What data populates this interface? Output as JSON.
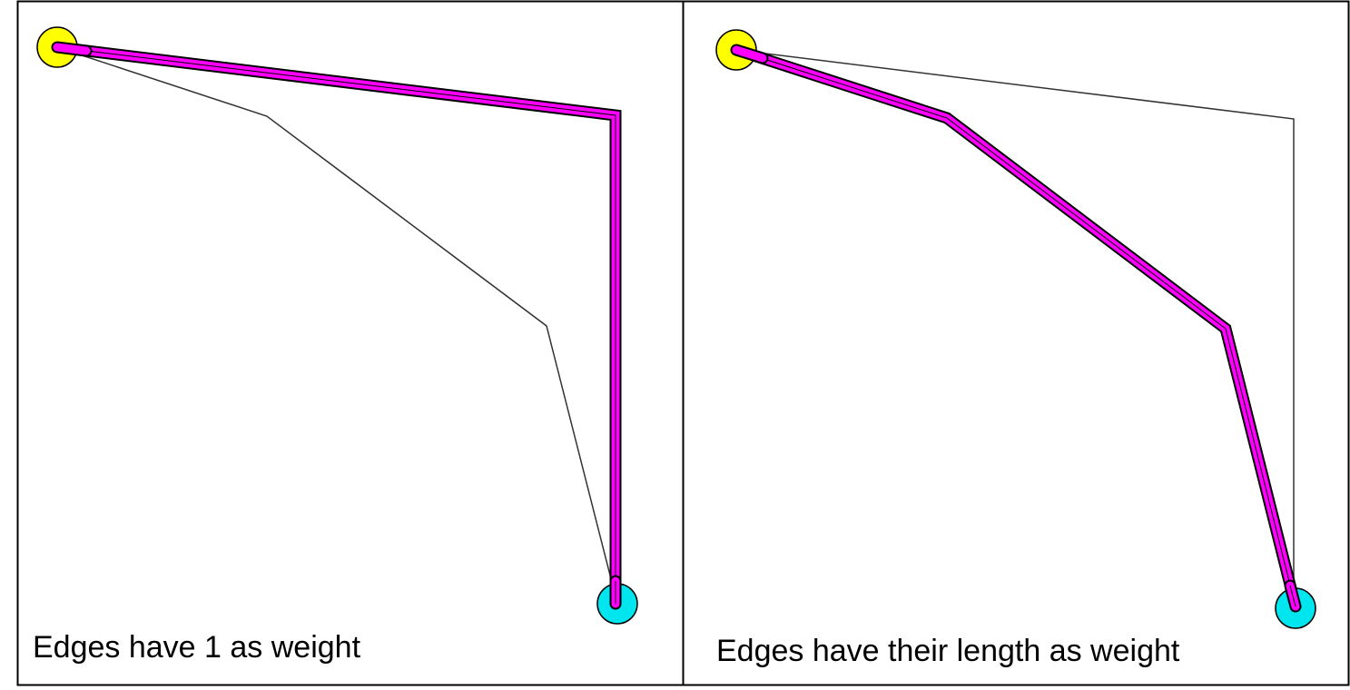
{
  "colors": {
    "background": "#ffffff",
    "frame": "#000000",
    "edge": "#333333",
    "path_outline": "#000000",
    "path_fill": "#ff00ff",
    "start_node": "#ffff00",
    "end_node": "#00e5ee",
    "node_outline": "#000000"
  },
  "panels": [
    {
      "id": "left",
      "caption": "Edges have 1 as weight",
      "highlighted_route": "direct two-edge route via the upper-right corner"
    },
    {
      "id": "right",
      "caption": "Edges have their length as weight",
      "highlighted_route": "shorter three-edge diagonal route"
    }
  ]
}
